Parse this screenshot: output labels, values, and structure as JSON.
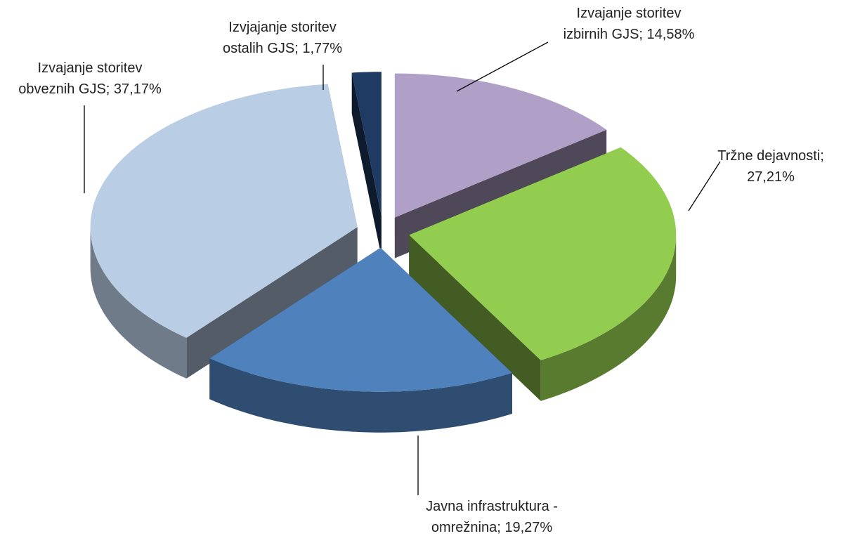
{
  "chart_data": {
    "type": "pie3d",
    "values": [
      14.58,
      27.21,
      19.27,
      37.17,
      1.77
    ],
    "value_labels": [
      "Izvajanje storitev izbirnih GJS; 14,58%",
      "Tržne dejavnosti; 27,21%",
      "Javna infrastruktura - omrežnina; 19,27%",
      "Izvajanje storitev obveznih GJS; 37,17%",
      "Izvjajanje storitev ostalih GJS; 1,77%"
    ],
    "colors": [
      "#b09fc6",
      "#92cd50",
      "#4f81bd",
      "#b9cde4",
      "#1f3b64"
    ]
  }
}
